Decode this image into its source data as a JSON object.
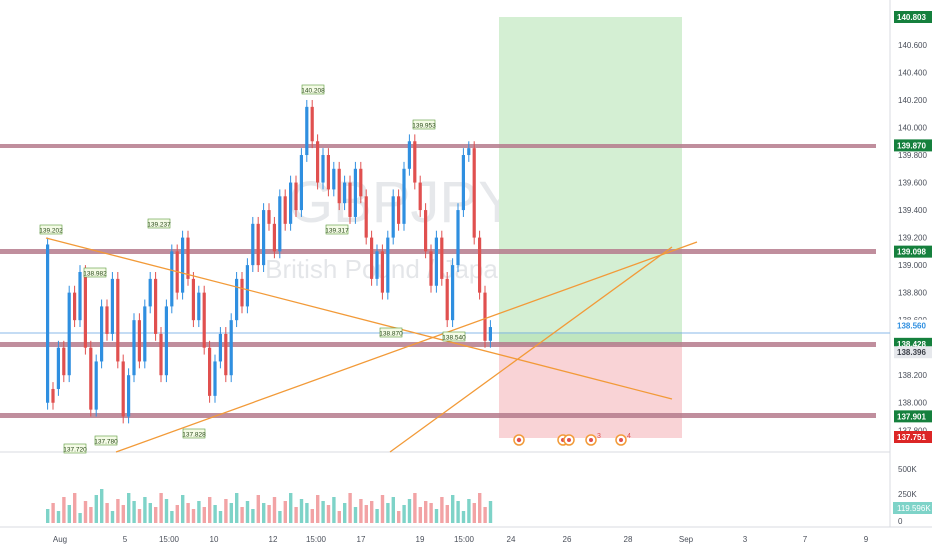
{
  "watermark": {
    "symbol": "GBPJPY, 4h",
    "description": "British Pound / Japanese Yen"
  },
  "colors": {
    "up": "#2f8fe0",
    "down": "#e0504f",
    "support_line": "#b57a8c",
    "trendline": "#f29a38",
    "target_zone": "#d4efd3",
    "stop_zone": "#f9d3d6",
    "price_line": "#89b9e8",
    "label_green": "#15803d",
    "label_red": "#dc2626",
    "axis_text": "#4a4f5a",
    "volume_up": "#7ed3c8",
    "volume_down": "#f2a3a5"
  },
  "chart_data": {
    "type": "candlestick",
    "title": "",
    "price_axis": {
      "ylim": [
        137.751,
        140.803
      ],
      "ticks": [
        "140.600",
        "140.400",
        "140.200",
        "140.000",
        "139.800",
        "139.600",
        "139.400",
        "139.200",
        "139.000",
        "138.800",
        "138.600",
        "138.200",
        "138.000",
        "137.800"
      ]
    },
    "time_axis": {
      "ticks": [
        "Aug",
        "5",
        "15:00",
        "10",
        "12",
        "15:00",
        "17",
        "19",
        "15:00",
        "24",
        "26",
        "28",
        "Sep",
        "3",
        "7",
        "9"
      ]
    },
    "horizontal_levels": [
      139.87,
      139.098,
      138.428,
      137.901
    ],
    "price_labels": [
      {
        "text": "140.803",
        "kind": "green"
      },
      {
        "text": "139.870",
        "kind": "green"
      },
      {
        "text": "139.098",
        "kind": "green"
      },
      {
        "text": "138.560",
        "kind": "plain"
      },
      {
        "text": "138.428",
        "kind": "green"
      },
      {
        "text": "138.396",
        "kind": "gray"
      },
      {
        "text": "137.901",
        "kind": "green"
      },
      {
        "text": "137.751",
        "kind": "red"
      }
    ],
    "swing_labels": [
      "139.202",
      "138.982",
      "139.237",
      "137.780",
      "137.720",
      "137.828",
      "140.208",
      "139.317",
      "139.953",
      "138.870",
      "138.540"
    ],
    "position": {
      "type": "long",
      "entry": 138.428,
      "target": 140.803,
      "stop": 137.751
    },
    "volume_axis": {
      "ticks": [
        "500K",
        "250K",
        "0"
      ],
      "last": "119.596K"
    },
    "event_markers": [
      "3",
      "4"
    ]
  }
}
